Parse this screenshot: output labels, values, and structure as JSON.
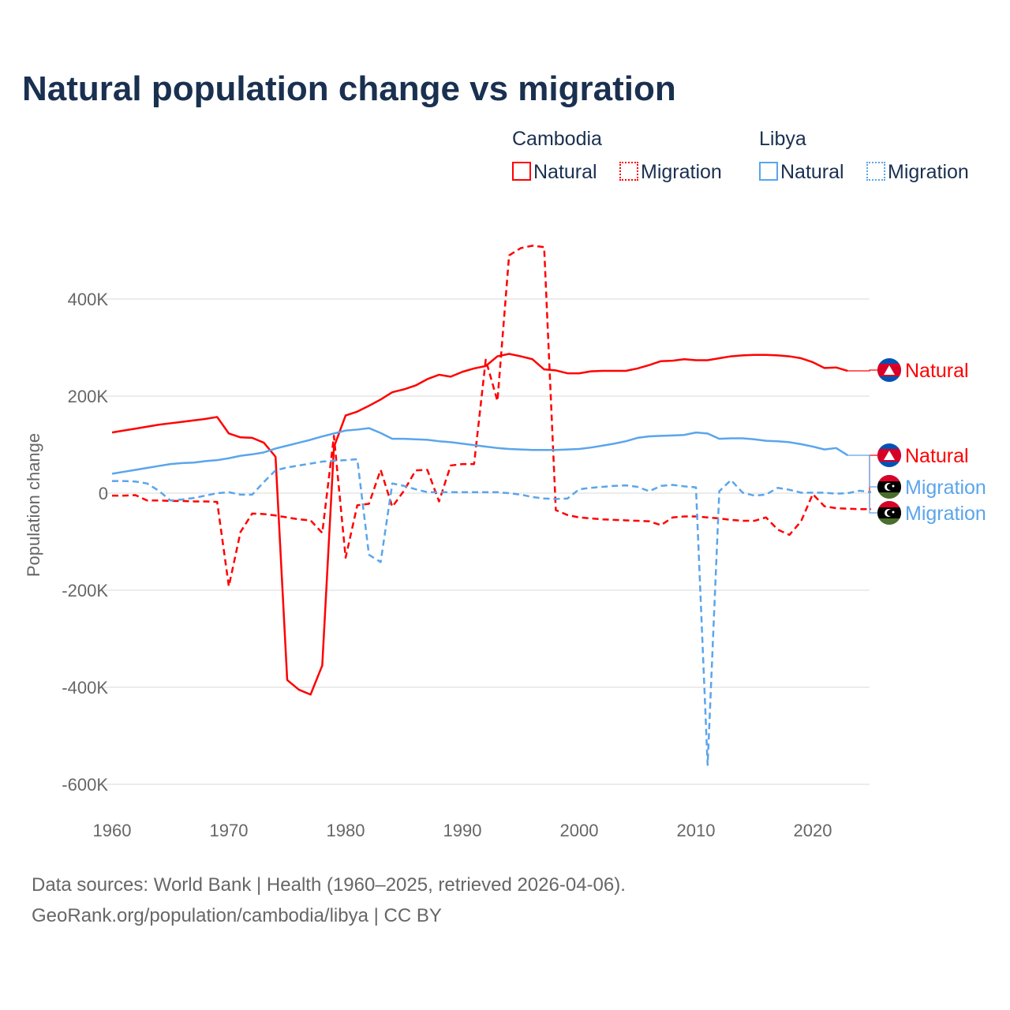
{
  "chart_data": {
    "type": "line",
    "title": "Natural population change vs migration",
    "xlabel": "",
    "ylabel": "Population change",
    "xlim": [
      1960,
      2025
    ],
    "ylim": [
      -600000,
      520000
    ],
    "x_ticks": [
      "1960",
      "1970",
      "1980",
      "1990",
      "2000",
      "2010",
      "2020"
    ],
    "y_ticks": [
      {
        "v": 400000,
        "label": "400K"
      },
      {
        "v": 200000,
        "label": "200K"
      },
      {
        "v": 0,
        "label": "0"
      },
      {
        "v": -200000,
        "label": "-200K"
      },
      {
        "v": -400000,
        "label": "-400K"
      },
      {
        "v": -600000,
        "label": "-600K"
      }
    ],
    "grid": true,
    "legend": {
      "groups": [
        {
          "name": "Cambodia",
          "items": [
            "Natural",
            "Migration"
          ]
        },
        {
          "name": "Libya",
          "items": [
            "Natural",
            "Migration"
          ]
        }
      ],
      "placement": "top-right"
    },
    "series": [
      {
        "name": "Natural",
        "country": "Cambodia",
        "color": "#ff0000",
        "dash": false,
        "x0": 1960,
        "values_k": [
          125,
          129,
          133,
          137,
          141,
          144,
          147,
          150,
          153,
          157,
          123,
          115,
          114,
          104,
          75,
          -385,
          -405,
          -415,
          -355,
          95,
          160,
          168,
          180,
          193,
          208,
          214,
          222,
          235,
          244,
          240,
          250,
          257,
          262,
          282,
          287,
          282,
          276,
          255,
          253,
          247,
          247,
          251,
          252,
          252,
          252,
          257,
          264,
          272,
          273,
          276,
          274,
          274,
          278,
          282,
          284,
          285,
          285,
          284,
          282,
          278,
          270,
          258,
          259,
          252
        ]
      },
      {
        "name": "Migration",
        "country": "Cambodia",
        "color": "#ff0000",
        "dash": true,
        "x0": 1960,
        "values_k": [
          -5,
          -5,
          -4,
          -15,
          -15,
          -16,
          -16,
          -17,
          -17,
          -18,
          -192,
          -80,
          -42,
          -43,
          -46,
          -50,
          -54,
          -56,
          -82,
          118,
          -133,
          -25,
          -22,
          48,
          -28,
          5,
          47,
          48,
          -17,
          57,
          60,
          60,
          275,
          190,
          490,
          505,
          510,
          507,
          -35,
          -45,
          -50,
          -52,
          -54,
          -55,
          -56,
          -57,
          -58,
          -66,
          -50,
          -48,
          -48,
          -50,
          -52,
          -55,
          -57,
          -57,
          -50,
          -75,
          -86,
          -58,
          -2,
          -27,
          -31,
          -32,
          -33,
          -33
        ]
      },
      {
        "name": "Natural",
        "country": "Libya",
        "color": "#5aa5ec",
        "dash": false,
        "x0": 1960,
        "values_k": [
          40,
          44,
          48,
          52,
          56,
          60,
          62,
          63,
          66,
          68,
          72,
          77,
          80,
          84,
          92,
          98,
          104,
          110,
          117,
          123,
          129,
          131,
          134,
          124,
          112,
          112,
          111,
          110,
          107,
          105,
          102,
          99,
          96,
          93,
          91,
          90,
          89,
          89,
          89,
          90,
          91,
          94,
          98,
          102,
          107,
          114,
          117,
          118,
          119,
          120,
          125,
          123,
          112,
          113,
          113,
          111,
          108,
          107,
          105,
          101,
          96,
          90,
          93,
          78
        ]
      },
      {
        "name": "Migration",
        "country": "Libya",
        "color": "#5aa5ec",
        "dash": true,
        "x0": 1960,
        "values_k": [
          25,
          25,
          24,
          20,
          5,
          -15,
          -13,
          -10,
          -5,
          0,
          2,
          -3,
          -3,
          23,
          47,
          53,
          57,
          61,
          65,
          67,
          68,
          70,
          -127,
          -142,
          20,
          15,
          8,
          2,
          2,
          2,
          2,
          2,
          2,
          2,
          0,
          -3,
          -8,
          -11,
          -12,
          -11,
          8,
          11,
          13,
          15,
          16,
          13,
          4,
          15,
          17,
          14,
          12,
          -560,
          4,
          27,
          1,
          -5,
          -3,
          11,
          7,
          1,
          1,
          1,
          -1,
          0,
          5,
          2
        ]
      }
    ],
    "end_labels": [
      "Natural",
      "Natural",
      "Migration",
      "Migration"
    ]
  },
  "footer": {
    "line1": "Data sources: World Bank | Health (1960–2025, retrieved 2026-04-06).",
    "line2": "GeoRank.org/population/cambodia/libya | CC BY"
  }
}
